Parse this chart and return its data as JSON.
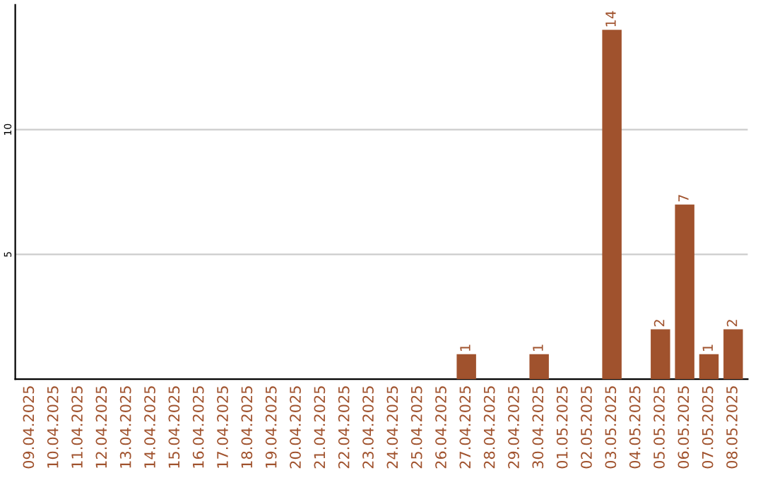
{
  "chart_data": {
    "type": "bar",
    "categories": [
      "09.04.2025",
      "10.04.2025",
      "11.04.2025",
      "12.04.2025",
      "13.04.2025",
      "14.04.2025",
      "15.04.2025",
      "16.04.2025",
      "17.04.2025",
      "18.04.2025",
      "19.04.2025",
      "20.04.2025",
      "21.04.2025",
      "22.04.2025",
      "23.04.2025",
      "24.04.2025",
      "25.04.2025",
      "26.04.2025",
      "27.04.2025",
      "28.04.2025",
      "29.04.2025",
      "30.04.2025",
      "01.05.2025",
      "02.05.2025",
      "03.05.2025",
      "04.05.2025",
      "05.05.2025",
      "06.05.2025",
      "07.05.2025",
      "08.05.2025"
    ],
    "values": [
      0,
      0,
      0,
      0,
      0,
      0,
      0,
      0,
      0,
      0,
      0,
      0,
      0,
      0,
      0,
      0,
      0,
      0,
      1,
      0,
      0,
      1,
      0,
      0,
      14,
      0,
      2,
      7,
      1,
      2
    ],
    "value_labels": [
      null,
      null,
      null,
      null,
      null,
      null,
      null,
      null,
      null,
      null,
      null,
      null,
      null,
      null,
      null,
      null,
      null,
      null,
      "1",
      null,
      null,
      "1",
      null,
      null,
      "14",
      null,
      "2",
      "7",
      "1",
      "2"
    ],
    "color": "#a0522d",
    "ylim": [
      0,
      15
    ],
    "yticks": [
      5,
      10
    ],
    "grid": "y"
  }
}
